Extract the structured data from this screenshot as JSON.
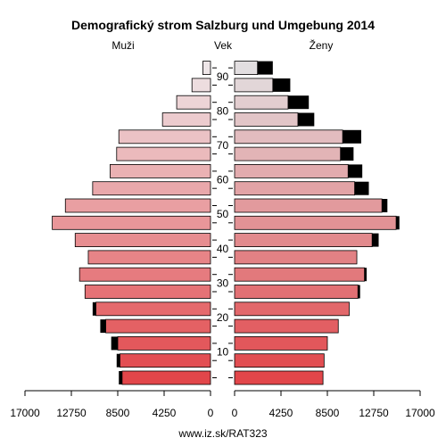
{
  "chart_data": {
    "type": "bar",
    "title": "Demografický strom Salzburg und Umgebung 2014",
    "left_label": "Muži",
    "center_label": "Vek",
    "right_label": "Ženy",
    "footer": "www.iz.sk/RAT323",
    "xlim": [
      0,
      17000
    ],
    "x_ticks": [
      0,
      4250,
      8500,
      12750,
      17000
    ],
    "x_tick_labels": [
      "0",
      "4250",
      "8500",
      "12750",
      "17000"
    ],
    "age_ticks": [
      10,
      20,
      30,
      40,
      50,
      60,
      70,
      80,
      90
    ],
    "age_groups": [
      "0-4",
      "5-9",
      "10-14",
      "15-19",
      "20-24",
      "25-29",
      "30-34",
      "35-39",
      "40-44",
      "45-49",
      "50-54",
      "55-59",
      "60-64",
      "65-69",
      "70-74",
      "75-79",
      "80-84",
      "85-89",
      "90+"
    ],
    "series": [
      {
        "name": "Muži",
        "values": [
          8100,
          8300,
          8500,
          9600,
          10500,
          11500,
          12000,
          11200,
          12400,
          14500,
          13300,
          10800,
          9200,
          8600,
          8400,
          4400,
          3100,
          1700,
          700
        ],
        "excess": [
          300,
          300,
          600,
          500,
          300,
          0,
          0,
          0,
          0,
          0,
          0,
          0,
          0,
          0,
          0,
          0,
          0,
          0,
          0
        ]
      },
      {
        "name": "Ženy",
        "values": [
          8100,
          8200,
          8500,
          9500,
          10500,
          11300,
          11900,
          11200,
          12600,
          14800,
          13500,
          11000,
          10400,
          9700,
          9900,
          5800,
          4900,
          3500,
          2100
        ],
        "excess": [
          0,
          0,
          0,
          0,
          0,
          200,
          200,
          0,
          600,
          300,
          500,
          1300,
          1300,
          1200,
          1700,
          1500,
          1900,
          1600,
          1400
        ]
      }
    ]
  }
}
